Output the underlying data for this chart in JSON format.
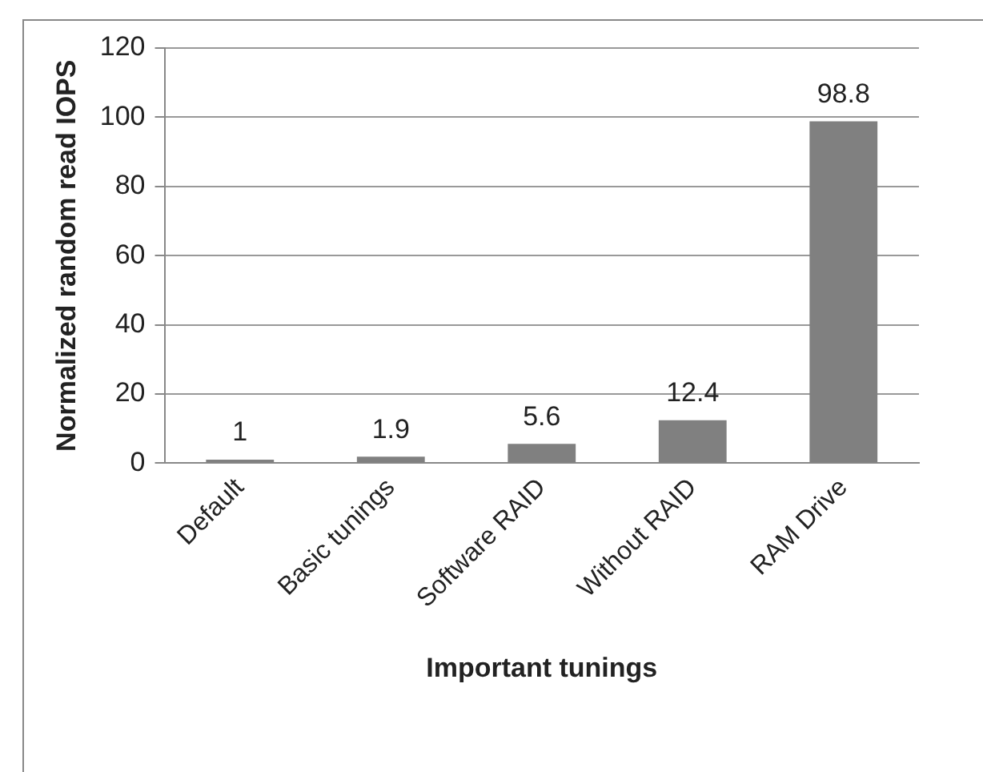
{
  "chart_data": {
    "type": "bar",
    "xlabel": "Important tunings",
    "ylabel": "Normalized random read IOPS",
    "categories": [
      "Default",
      "Basic tunings",
      "Software RAID",
      "Without RAID",
      "RAM Drive"
    ],
    "values": [
      1,
      1.9,
      5.6,
      12.4,
      98.8
    ],
    "color": "#808080",
    "ylim": [
      0,
      120
    ],
    "yticks": [
      0,
      20,
      40,
      60,
      80,
      100,
      120
    ],
    "grid": "y",
    "data_labels": true
  }
}
